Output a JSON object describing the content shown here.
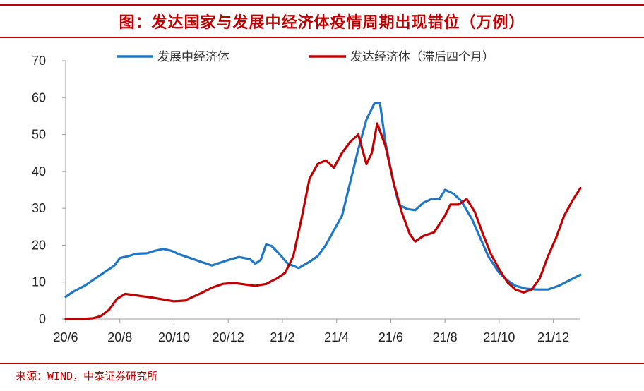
{
  "header": {
    "title": "图：发达国家与发展中经济体疫情周期出现错位（万例）"
  },
  "footer": {
    "source": "来源：WIND，中泰证券研究所"
  },
  "chart_data": {
    "type": "line",
    "title": "图：发达国家与发展中经济体疫情周期出现错位（万例）",
    "xlabel": "",
    "ylabel": "",
    "ylim": [
      0,
      70
    ],
    "yticks": [
      0,
      10,
      20,
      30,
      40,
      50,
      60,
      70
    ],
    "xlim": [
      0,
      19
    ],
    "xticks": [
      {
        "x": 0,
        "label": "20/6"
      },
      {
        "x": 2,
        "label": "20/8"
      },
      {
        "x": 4,
        "label": "20/10"
      },
      {
        "x": 6,
        "label": "20/12"
      },
      {
        "x": 8,
        "label": "21/2"
      },
      {
        "x": 10,
        "label": "21/4"
      },
      {
        "x": 12,
        "label": "21/6"
      },
      {
        "x": 14,
        "label": "21/8"
      },
      {
        "x": 16,
        "label": "21/10"
      },
      {
        "x": 18,
        "label": "21/12"
      }
    ],
    "grid": false,
    "legend": "top",
    "series": [
      {
        "name": "发展中经济体",
        "color": "#1f77c4",
        "points": [
          [
            0,
            6
          ],
          [
            0.3,
            7.5
          ],
          [
            0.7,
            9
          ],
          [
            1.0,
            10.5
          ],
          [
            1.4,
            12.5
          ],
          [
            1.8,
            14.5
          ],
          [
            2.0,
            16.5
          ],
          [
            2.3,
            17
          ],
          [
            2.6,
            17.7
          ],
          [
            3.0,
            17.8
          ],
          [
            3.3,
            18.5
          ],
          [
            3.6,
            19
          ],
          [
            3.9,
            18.5
          ],
          [
            4.2,
            17.5
          ],
          [
            4.6,
            16.5
          ],
          [
            5.0,
            15.5
          ],
          [
            5.4,
            14.5
          ],
          [
            5.8,
            15.5
          ],
          [
            6.1,
            16.2
          ],
          [
            6.4,
            16.8
          ],
          [
            6.8,
            16.2
          ],
          [
            7.0,
            15
          ],
          [
            7.2,
            16
          ],
          [
            7.4,
            20.2
          ],
          [
            7.6,
            19.8
          ],
          [
            7.9,
            17.5
          ],
          [
            8.2,
            15
          ],
          [
            8.6,
            13.8
          ],
          [
            9.0,
            15.5
          ],
          [
            9.3,
            17
          ],
          [
            9.6,
            20
          ],
          [
            9.9,
            24
          ],
          [
            10.2,
            28
          ],
          [
            10.5,
            37
          ],
          [
            10.8,
            46
          ],
          [
            11.1,
            54
          ],
          [
            11.4,
            58.5
          ],
          [
            11.6,
            58.5
          ],
          [
            11.8,
            48
          ],
          [
            12.1,
            37
          ],
          [
            12.3,
            31
          ],
          [
            12.6,
            29.8
          ],
          [
            12.9,
            29.5
          ],
          [
            13.2,
            31.5
          ],
          [
            13.5,
            32.5
          ],
          [
            13.8,
            32.5
          ],
          [
            14.0,
            35
          ],
          [
            14.3,
            34
          ],
          [
            14.6,
            32
          ],
          [
            15.0,
            27
          ],
          [
            15.3,
            22
          ],
          [
            15.6,
            17
          ],
          [
            16.0,
            12.5
          ],
          [
            16.3,
            10.5
          ],
          [
            16.6,
            9
          ],
          [
            17.0,
            8.2
          ],
          [
            17.4,
            8
          ],
          [
            17.8,
            8
          ],
          [
            18.2,
            9
          ],
          [
            18.6,
            10.5
          ],
          [
            19.0,
            12
          ]
        ]
      },
      {
        "name": "发达经济体（滞后四个月）",
        "color": "#c00000",
        "points": [
          [
            0,
            0
          ],
          [
            0.6,
            0
          ],
          [
            1.0,
            0.2
          ],
          [
            1.3,
            0.8
          ],
          [
            1.6,
            2.5
          ],
          [
            1.9,
            5.5
          ],
          [
            2.2,
            6.8
          ],
          [
            2.5,
            6.5
          ],
          [
            2.8,
            6.2
          ],
          [
            3.2,
            5.8
          ],
          [
            3.6,
            5.3
          ],
          [
            4.0,
            4.8
          ],
          [
            4.4,
            5
          ],
          [
            4.7,
            6
          ],
          [
            5.0,
            7
          ],
          [
            5.4,
            8.5
          ],
          [
            5.8,
            9.5
          ],
          [
            6.2,
            9.8
          ],
          [
            6.6,
            9.4
          ],
          [
            7.0,
            9
          ],
          [
            7.4,
            9.5
          ],
          [
            7.8,
            11
          ],
          [
            8.1,
            12.5
          ],
          [
            8.4,
            17
          ],
          [
            8.7,
            27
          ],
          [
            9.0,
            38
          ],
          [
            9.3,
            42
          ],
          [
            9.6,
            43
          ],
          [
            9.9,
            41
          ],
          [
            10.2,
            45
          ],
          [
            10.5,
            48
          ],
          [
            10.8,
            50
          ],
          [
            11.1,
            42
          ],
          [
            11.3,
            45
          ],
          [
            11.5,
            53
          ],
          [
            11.8,
            47
          ],
          [
            12.1,
            37
          ],
          [
            12.4,
            29
          ],
          [
            12.7,
            23
          ],
          [
            12.9,
            21
          ],
          [
            13.2,
            22.5
          ],
          [
            13.6,
            23.5
          ],
          [
            14.0,
            28
          ],
          [
            14.2,
            31
          ],
          [
            14.5,
            31
          ],
          [
            14.8,
            32.5
          ],
          [
            15.1,
            29
          ],
          [
            15.4,
            23
          ],
          [
            15.7,
            17.5
          ],
          [
            16.0,
            13.5
          ],
          [
            16.3,
            10
          ],
          [
            16.6,
            8
          ],
          [
            16.9,
            7.2
          ],
          [
            17.2,
            8
          ],
          [
            17.5,
            11
          ],
          [
            17.8,
            17
          ],
          [
            18.1,
            22
          ],
          [
            18.4,
            28
          ],
          [
            18.7,
            32
          ],
          [
            19.0,
            35.5
          ]
        ]
      }
    ]
  }
}
